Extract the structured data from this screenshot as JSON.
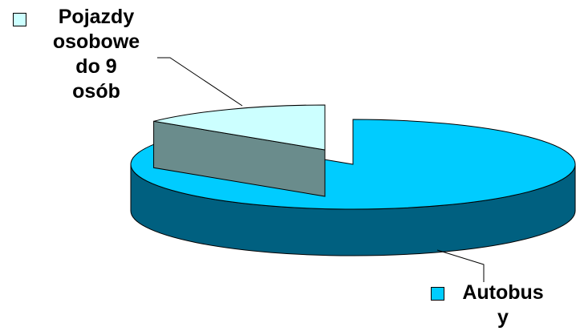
{
  "chart_data": {
    "type": "pie",
    "categories": [
      "Pojazdy osobowe do 9 osób",
      "Autobusy"
    ],
    "values": [
      14,
      86
    ],
    "colors": {
      "osobowe_top": "#CCFFFF",
      "osobowe_side": "#6A8C8C",
      "autobusy_top": "#00CCFF",
      "autobusy_side": "#006080"
    },
    "labels": {
      "osobowe": [
        "Pojazdy",
        "osobowe",
        "do 9",
        "osób"
      ],
      "autobusy": [
        "Autobus",
        "y"
      ]
    },
    "exploded": "Pojazdy osobowe do 9 osób",
    "style": "3d"
  }
}
